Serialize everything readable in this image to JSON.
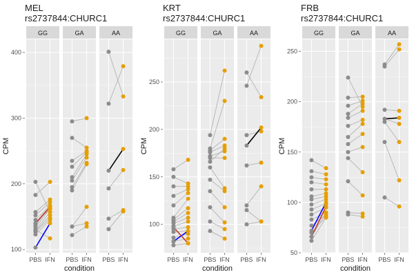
{
  "chart_data": [
    {
      "type": "line",
      "title": "MEL",
      "subtitle": "rs2737844:CHURC1",
      "xlabel": "condition",
      "ylabel": "CPM",
      "categories": [
        "PBS",
        "IFN"
      ],
      "ylim": [
        95,
        420
      ],
      "yticks": [
        100,
        200,
        300,
        400
      ],
      "facets": [
        {
          "label": "GG",
          "pairs": [
            [
              203,
              157
            ],
            [
              183,
              203
            ],
            [
              157,
              176
            ],
            [
              152,
              172
            ],
            [
              145,
              167
            ],
            [
              140,
              162
            ],
            [
              137,
              165
            ],
            [
              134,
              162
            ],
            [
              130,
              157
            ],
            [
              128,
              152
            ],
            [
              127,
              148
            ],
            [
              123,
              145
            ],
            [
              130,
              117
            ]
          ],
          "highlight": [
            {
              "pair": [
                140,
                165
              ],
              "color": "#c0392b"
            },
            {
              "pair": [
                103,
                140
              ],
              "color": "#0000ff"
            }
          ]
        },
        {
          "label": "GA",
          "pairs": [
            [
              295,
              300
            ],
            [
              270,
              255
            ],
            [
              235,
              250
            ],
            [
              226,
              248
            ],
            [
              210,
              245
            ],
            [
              205,
              240
            ],
            [
              195,
              232
            ],
            [
              190,
              230
            ],
            [
              135,
              165
            ],
            [
              135,
              140
            ],
            [
              122,
              135
            ]
          ],
          "highlight": []
        },
        {
          "label": "AA",
          "pairs": [
            [
              401,
              333
            ],
            [
              322,
              379
            ],
            [
              193,
              221
            ],
            [
              147,
              160
            ],
            [
              131,
              158
            ]
          ],
          "highlight": [
            {
              "pair": [
                220,
                253
              ],
              "color": "#000000"
            }
          ]
        }
      ]
    },
    {
      "type": "line",
      "title": "KRT",
      "subtitle": "rs2737844:CHURC1",
      "xlabel": "condition",
      "ylabel": "CPM",
      "categories": [
        "PBS",
        "IFN"
      ],
      "ylim": [
        70,
        295
      ],
      "yticks": [
        100,
        150,
        200,
        250
      ],
      "facets": [
        {
          "label": "GG",
          "pairs": [
            [
              158,
              168
            ],
            [
              150,
              143
            ],
            [
              140,
              140
            ],
            [
              130,
              137
            ],
            [
              120,
              133
            ],
            [
              107,
              127
            ],
            [
              105,
              117
            ],
            [
              103,
              112
            ],
            [
              101,
              107
            ],
            [
              98,
              103
            ],
            [
              95,
              97
            ],
            [
              92,
              93
            ],
            [
              86,
              90
            ],
            [
              82,
              85
            ],
            [
              78,
              80
            ]
          ],
          "highlight": [
            {
              "pair": [
                82,
                93
              ],
              "color": "#0000ff"
            },
            {
              "pair": [
                97,
                80
              ],
              "color": "#c0392b"
            }
          ]
        },
        {
          "label": "GA",
          "pairs": [
            [
              194,
              262
            ],
            [
              180,
              230
            ],
            [
              178,
              190
            ],
            [
              176,
              183
            ],
            [
              172,
              177
            ],
            [
              170,
              170
            ],
            [
              166,
              180
            ],
            [
              160,
              138
            ],
            [
              147,
              135
            ],
            [
              135,
              118
            ],
            [
              118,
              102
            ],
            [
              103,
              95
            ],
            [
              93,
              85
            ]
          ],
          "highlight": []
        },
        {
          "label": "AA",
          "pairs": [
            [
              260,
              234
            ],
            [
              246,
              288
            ],
            [
              194,
              198
            ],
            [
              162,
              165
            ],
            [
              120,
              140
            ],
            [
              115,
              103
            ],
            [
              100,
              103
            ]
          ],
          "highlight": [
            {
              "pair": [
                183,
                202
              ],
              "color": "#000000"
            }
          ]
        }
      ]
    },
    {
      "type": "line",
      "title": "FRB",
      "subtitle": "rs2737844:CHURC1",
      "xlabel": "condition",
      "ylabel": "CPM",
      "categories": [
        "PBS",
        "IFN"
      ],
      "ylim": [
        50,
        262
      ],
      "yticks": [
        50,
        100,
        150,
        200,
        250
      ],
      "facets": [
        {
          "label": "GG",
          "pairs": [
            [
              142,
              134
            ],
            [
              131,
              128
            ],
            [
              125,
              123
            ],
            [
              120,
              118
            ],
            [
              113,
              113
            ],
            [
              106,
              109
            ],
            [
              103,
              106
            ],
            [
              98,
              103
            ],
            [
              93,
              99
            ],
            [
              88,
              95
            ],
            [
              83,
              90
            ],
            [
              77,
              88
            ],
            [
              70,
              86
            ],
            [
              66,
              90
            ],
            [
              62,
              85
            ]
          ],
          "highlight": [
            {
              "pair": [
                72,
                100
              ],
              "color": "#0000ff"
            },
            {
              "pair": [
                66,
                96
              ],
              "color": "#c0392b"
            }
          ]
        },
        {
          "label": "GA",
          "pairs": [
            [
              224,
              195
            ],
            [
              204,
              205
            ],
            [
              196,
              201
            ],
            [
              188,
              198
            ],
            [
              184,
              191
            ],
            [
              176,
              182
            ],
            [
              165,
              178
            ],
            [
              158,
              168
            ],
            [
              150,
              155
            ],
            [
              144,
              130
            ],
            [
              121,
              107
            ],
            [
              90,
              89
            ],
            [
              88,
              86
            ]
          ],
          "highlight": []
        },
        {
          "label": "AA",
          "pairs": [
            [
              237,
              257
            ],
            [
              235,
              252
            ],
            [
              192,
              191
            ],
            [
              183,
              178
            ],
            [
              180,
              160
            ],
            [
              160,
              122
            ],
            [
              105,
              96
            ]
          ],
          "highlight": [
            {
              "pair": [
                183,
                184
              ],
              "color": "#000000"
            }
          ]
        }
      ]
    }
  ],
  "colors": {
    "panel_bg": "#ebebeb",
    "strip_bg": "#d9d9d9",
    "grid": "#ffffff",
    "line": "#b3b3b3",
    "pbs_point": "#8c8c8c",
    "ifn_point": "#e69f00",
    "text": "#1a1a1a",
    "tick_text": "#4d4d4d"
  }
}
